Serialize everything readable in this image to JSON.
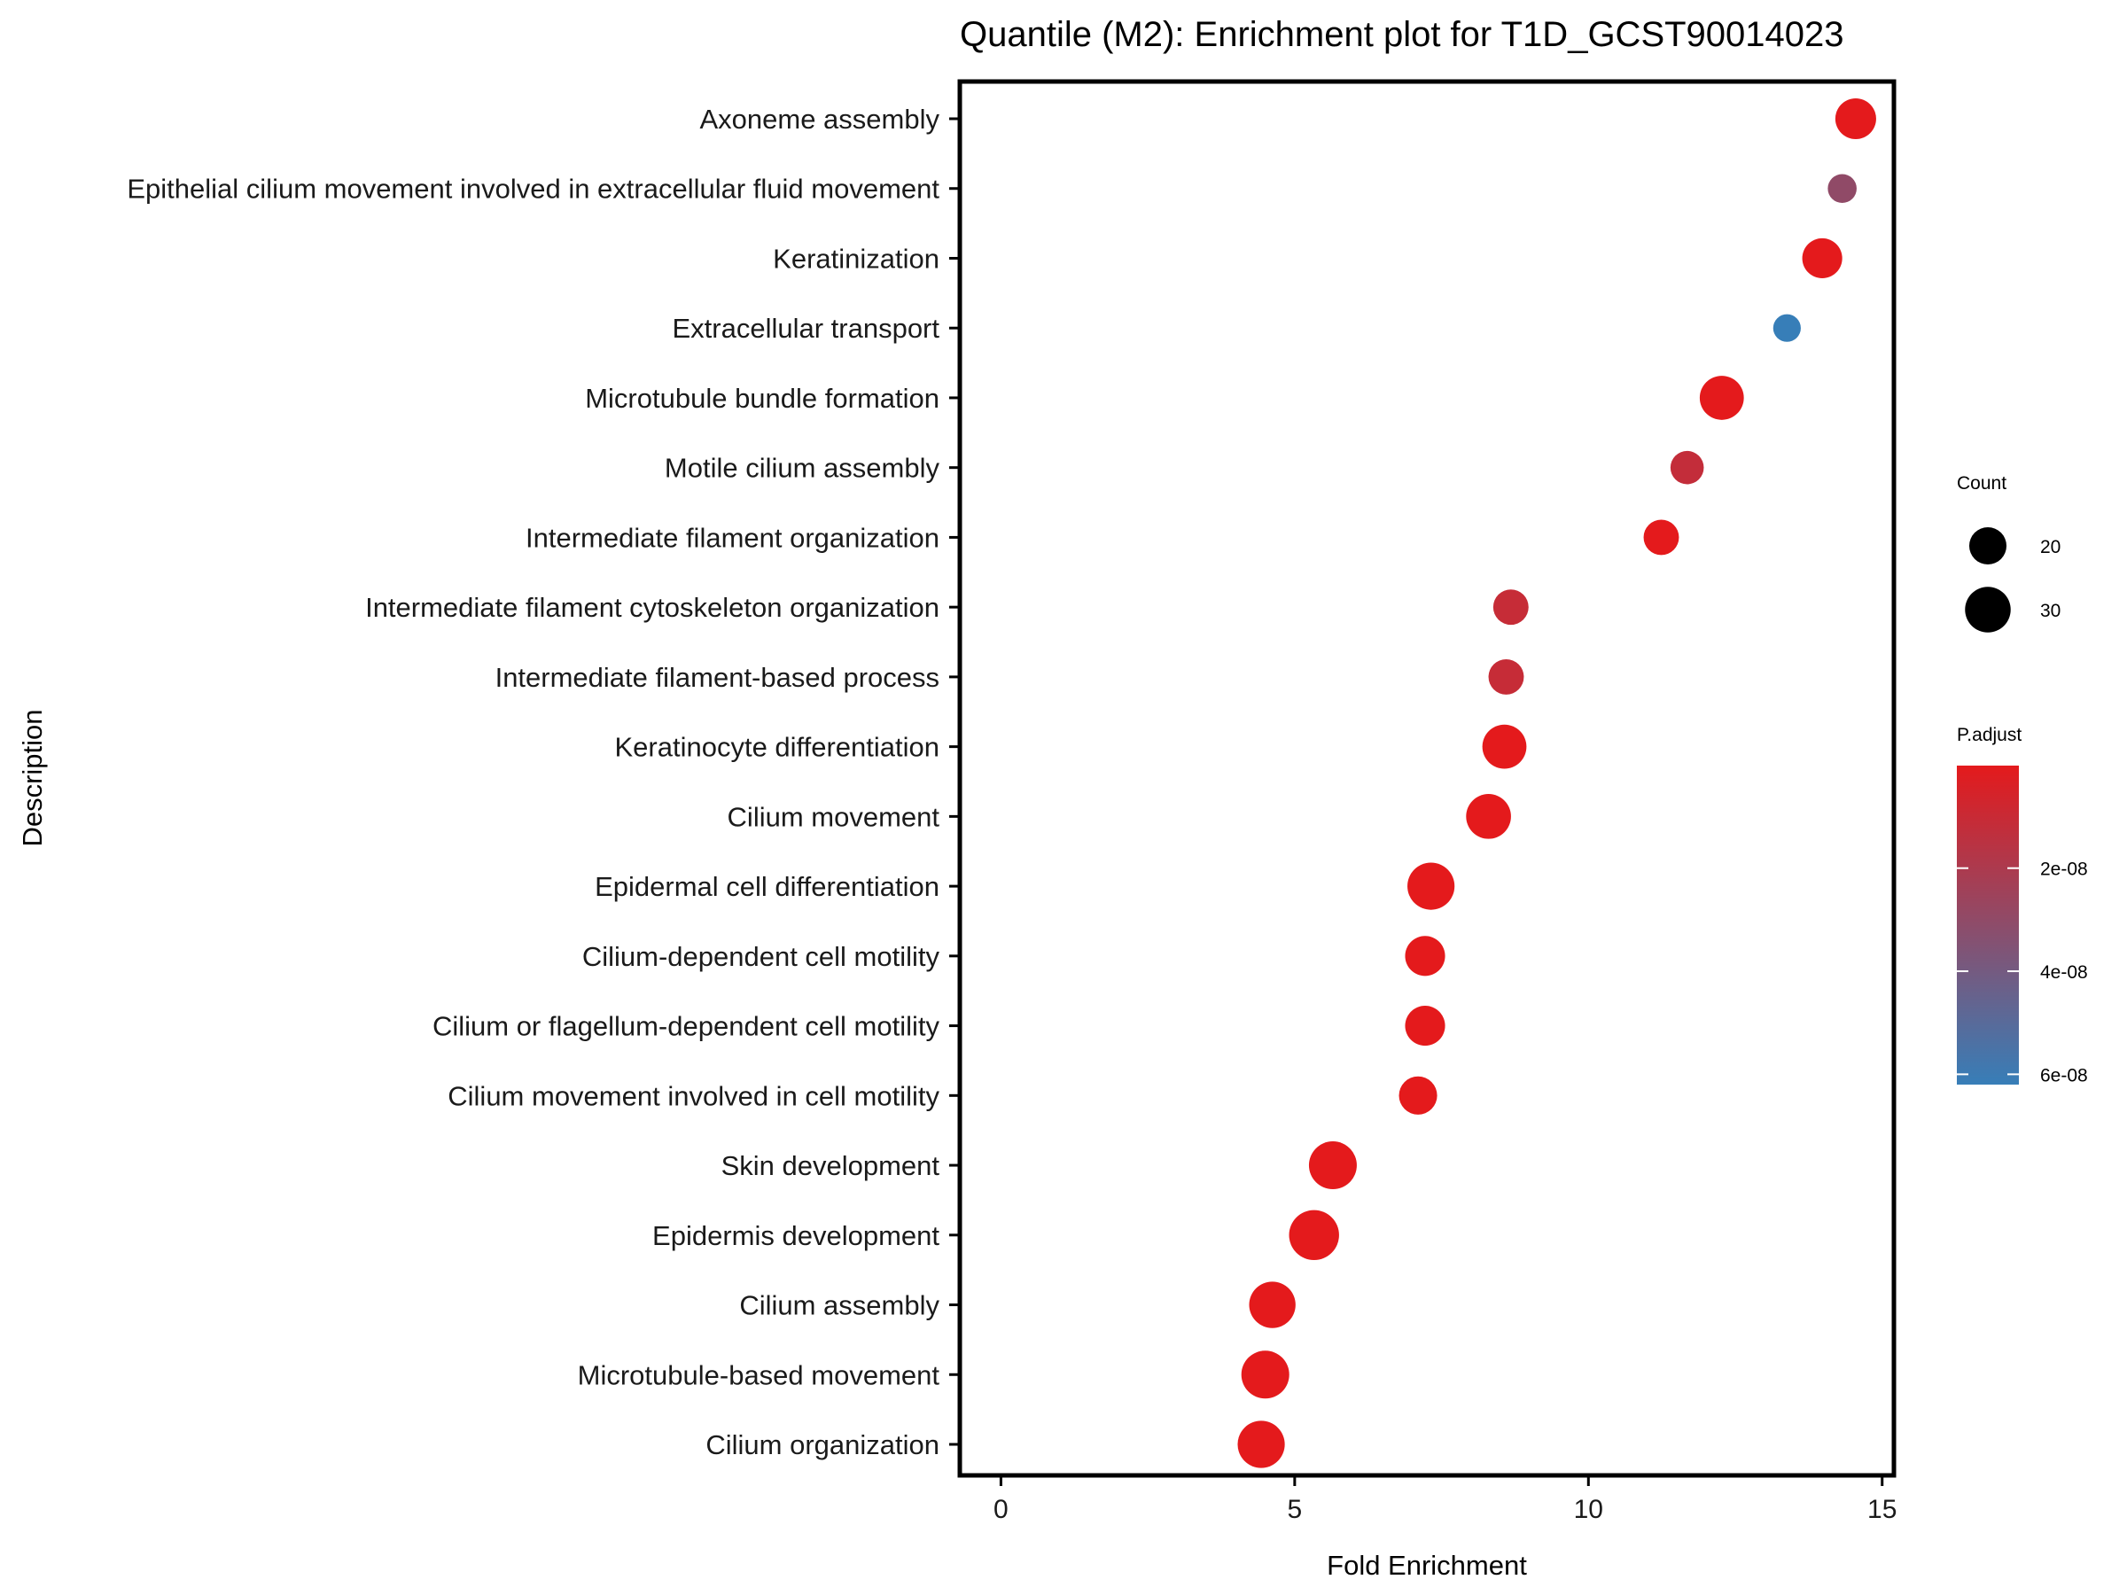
{
  "chart_data": {
    "type": "scatter",
    "title": "Quantile (M2): Enrichment plot for T1D_GCST90014023",
    "xlabel": "Fold Enrichment",
    "ylabel": "Description",
    "xlim": [
      -0.7,
      15.2
    ],
    "xticks": [
      0,
      5,
      10,
      15
    ],
    "grid": false,
    "legend_position": "right",
    "size_legend": {
      "title": "Count",
      "entries": [
        20,
        30
      ]
    },
    "color_legend": {
      "title": "P.adjust",
      "ticks": [
        "2e-08",
        "4e-08",
        "6e-08"
      ],
      "tick_values": [
        2e-08,
        4e-08,
        6e-08
      ],
      "range": [
        1e-10,
        6.2e-08
      ],
      "low_color": "#e41a1c",
      "high_color": "#377eb8"
    },
    "categories": [
      "Axoneme assembly",
      "Epithelial cilium movement involved in extracellular fluid movement",
      "Keratinization",
      "Extracellular transport",
      "Microtubule bundle formation",
      "Motile cilium assembly",
      "Intermediate filament organization",
      "Intermediate filament cytoskeleton organization",
      "Intermediate filament-based process",
      "Keratinocyte differentiation",
      "Cilium movement",
      "Epidermal cell differentiation",
      "Cilium-dependent cell motility",
      "Cilium or flagellum-dependent cell motility",
      "Cilium movement involved in cell motility",
      "Skin development",
      "Epidermis development",
      "Cilium assembly",
      "Microtubule-based movement",
      "Cilium organization"
    ],
    "points": [
      {
        "description": "Axoneme assembly",
        "fold_enrichment": 14.55,
        "count": 24,
        "p_adjust": 1e-10
      },
      {
        "description": "Epithelial cilium movement involved in extracellular fluid movement",
        "fold_enrichment": 14.32,
        "count": 12,
        "p_adjust": 3e-08
      },
      {
        "description": "Keratinization",
        "fold_enrichment": 13.98,
        "count": 23,
        "p_adjust": 1e-10
      },
      {
        "description": "Extracellular transport",
        "fold_enrichment": 13.38,
        "count": 11,
        "p_adjust": 6.2e-08
      },
      {
        "description": "Microtubule bundle formation",
        "fold_enrichment": 12.27,
        "count": 28,
        "p_adjust": 2e-10
      },
      {
        "description": "Motile cilium assembly",
        "fold_enrichment": 11.68,
        "count": 16,
        "p_adjust": 1.2e-08
      },
      {
        "description": "Intermediate filament organization",
        "fold_enrichment": 11.24,
        "count": 18,
        "p_adjust": 2e-10
      },
      {
        "description": "Intermediate filament cytoskeleton organization",
        "fold_enrichment": 8.68,
        "count": 18,
        "p_adjust": 1.1e-08
      },
      {
        "description": "Intermediate filament-based process",
        "fold_enrichment": 8.6,
        "count": 18,
        "p_adjust": 1.1e-08
      },
      {
        "description": "Keratinocyte differentiation",
        "fold_enrichment": 8.57,
        "count": 28,
        "p_adjust": 1e-10
      },
      {
        "description": "Cilium movement",
        "fold_enrichment": 8.3,
        "count": 29,
        "p_adjust": 1e-10
      },
      {
        "description": "Epidermal cell differentiation",
        "fold_enrichment": 7.32,
        "count": 32,
        "p_adjust": 1e-10
      },
      {
        "description": "Cilium-dependent cell motility",
        "fold_enrichment": 7.22,
        "count": 23,
        "p_adjust": 1e-10
      },
      {
        "description": "Cilium or flagellum-dependent cell motility",
        "fold_enrichment": 7.22,
        "count": 23,
        "p_adjust": 1e-10
      },
      {
        "description": "Cilium movement involved in cell motility",
        "fold_enrichment": 7.1,
        "count": 21,
        "p_adjust": 1e-10
      },
      {
        "description": "Skin development",
        "fold_enrichment": 5.65,
        "count": 33,
        "p_adjust": 1e-10
      },
      {
        "description": "Epidermis development",
        "fold_enrichment": 5.33,
        "count": 36,
        "p_adjust": 1e-10
      },
      {
        "description": "Cilium assembly",
        "fold_enrichment": 4.62,
        "count": 31,
        "p_adjust": 1e-10
      },
      {
        "description": "Microtubule-based movement",
        "fold_enrichment": 4.5,
        "count": 33,
        "p_adjust": 1e-10
      },
      {
        "description": "Cilium organization",
        "fold_enrichment": 4.43,
        "count": 32,
        "p_adjust": 1e-10
      }
    ]
  }
}
